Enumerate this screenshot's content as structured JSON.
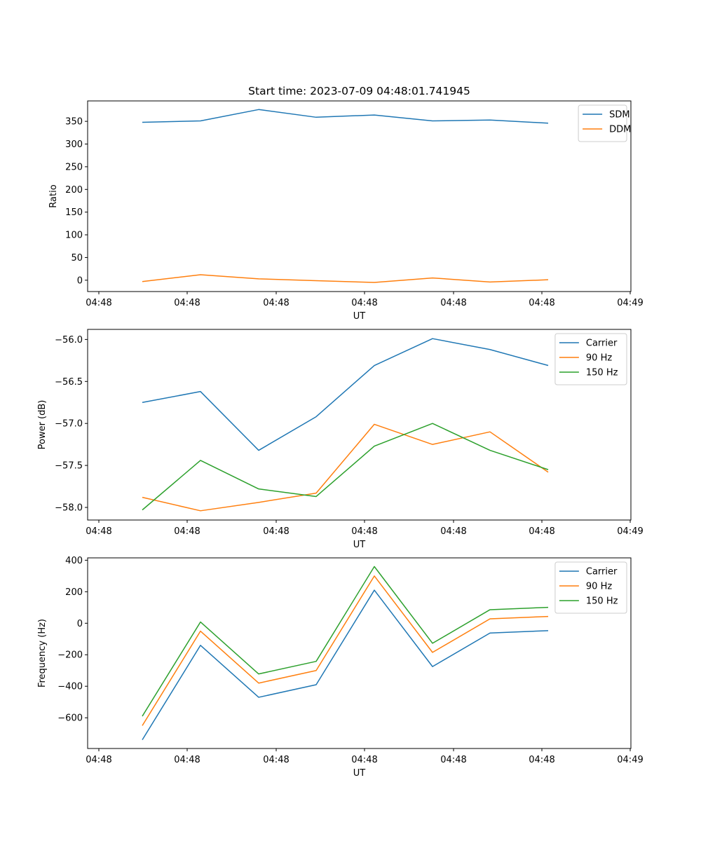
{
  "chart_data": [
    {
      "type": "line",
      "title": "Start time: 2023-07-09 04:48:01.741945",
      "xlabel": "UT",
      "ylabel": "Ratio",
      "x_tick_labels": [
        "04:48",
        "04:48",
        "04:48",
        "04:48",
        "04:48",
        "04:48",
        "04:48"
      ],
      "x_end_tick_label": "04:49",
      "ylim": [
        -25,
        395
      ],
      "yticks": [
        0,
        50,
        100,
        150,
        200,
        250,
        300,
        350
      ],
      "ytick_labels": [
        "0",
        "50",
        "100",
        "150",
        "200",
        "250",
        "300",
        "350"
      ],
      "legend": "top-right",
      "series": [
        {
          "name": "SDM",
          "color": "#1f77b4",
          "values": [
            348,
            351,
            376,
            359,
            364,
            351,
            353,
            346
          ]
        },
        {
          "name": "DDM",
          "color": "#ff7f0e",
          "values": [
            -3,
            12,
            3,
            -1,
            -5,
            5,
            -4,
            1
          ]
        }
      ]
    },
    {
      "type": "line",
      "title": "",
      "xlabel": "UT",
      "ylabel": "Power (dB)",
      "x_tick_labels": [
        "04:48",
        "04:48",
        "04:48",
        "04:48",
        "04:48",
        "04:48",
        "04:48"
      ],
      "x_end_tick_label": "04:49",
      "ylim": [
        -58.15,
        -55.88
      ],
      "yticks": [
        -58.0,
        -57.5,
        -57.0,
        -56.5,
        -56.0
      ],
      "ytick_labels": [
        "−58.0",
        "−57.5",
        "−57.0",
        "−56.5",
        "−56.0"
      ],
      "legend": "top-right",
      "series": [
        {
          "name": "Carrier",
          "color": "#1f77b4",
          "values": [
            -56.75,
            -56.62,
            -57.32,
            -56.92,
            -56.31,
            -55.99,
            -56.12,
            -56.31
          ]
        },
        {
          "name": "90 Hz",
          "color": "#ff7f0e",
          "values": [
            -57.88,
            -58.04,
            -57.94,
            -57.83,
            -57.01,
            -57.25,
            -57.1,
            -57.58
          ]
        },
        {
          "name": "150 Hz",
          "color": "#2ca02c",
          "values": [
            -58.03,
            -57.44,
            -57.78,
            -57.87,
            -57.27,
            -57.0,
            -57.32,
            -57.55
          ]
        }
      ]
    },
    {
      "type": "line",
      "title": "",
      "xlabel": "UT",
      "ylabel": "Frequency (Hz)",
      "x_tick_labels": [
        "04:48",
        "04:48",
        "04:48",
        "04:48",
        "04:48",
        "04:48",
        "04:48"
      ],
      "x_end_tick_label": "04:49",
      "ylim": [
        -795,
        415
      ],
      "yticks": [
        -600,
        -400,
        -200,
        0,
        200,
        400
      ],
      "ytick_labels": [
        "−600",
        "−400",
        "−200",
        "0",
        "200",
        "400"
      ],
      "legend": "top-right",
      "series": [
        {
          "name": "Carrier",
          "color": "#1f77b4",
          "values": [
            -740,
            -140,
            -470,
            -390,
            210,
            -275,
            -62,
            -47
          ]
        },
        {
          "name": "90 Hz",
          "color": "#ff7f0e",
          "values": [
            -650,
            -50,
            -380,
            -300,
            300,
            -185,
            28,
            43
          ]
        },
        {
          "name": "150 Hz",
          "color": "#2ca02c",
          "values": [
            -590,
            8,
            -322,
            -242,
            360,
            -127,
            86,
            101
          ]
        }
      ]
    }
  ]
}
